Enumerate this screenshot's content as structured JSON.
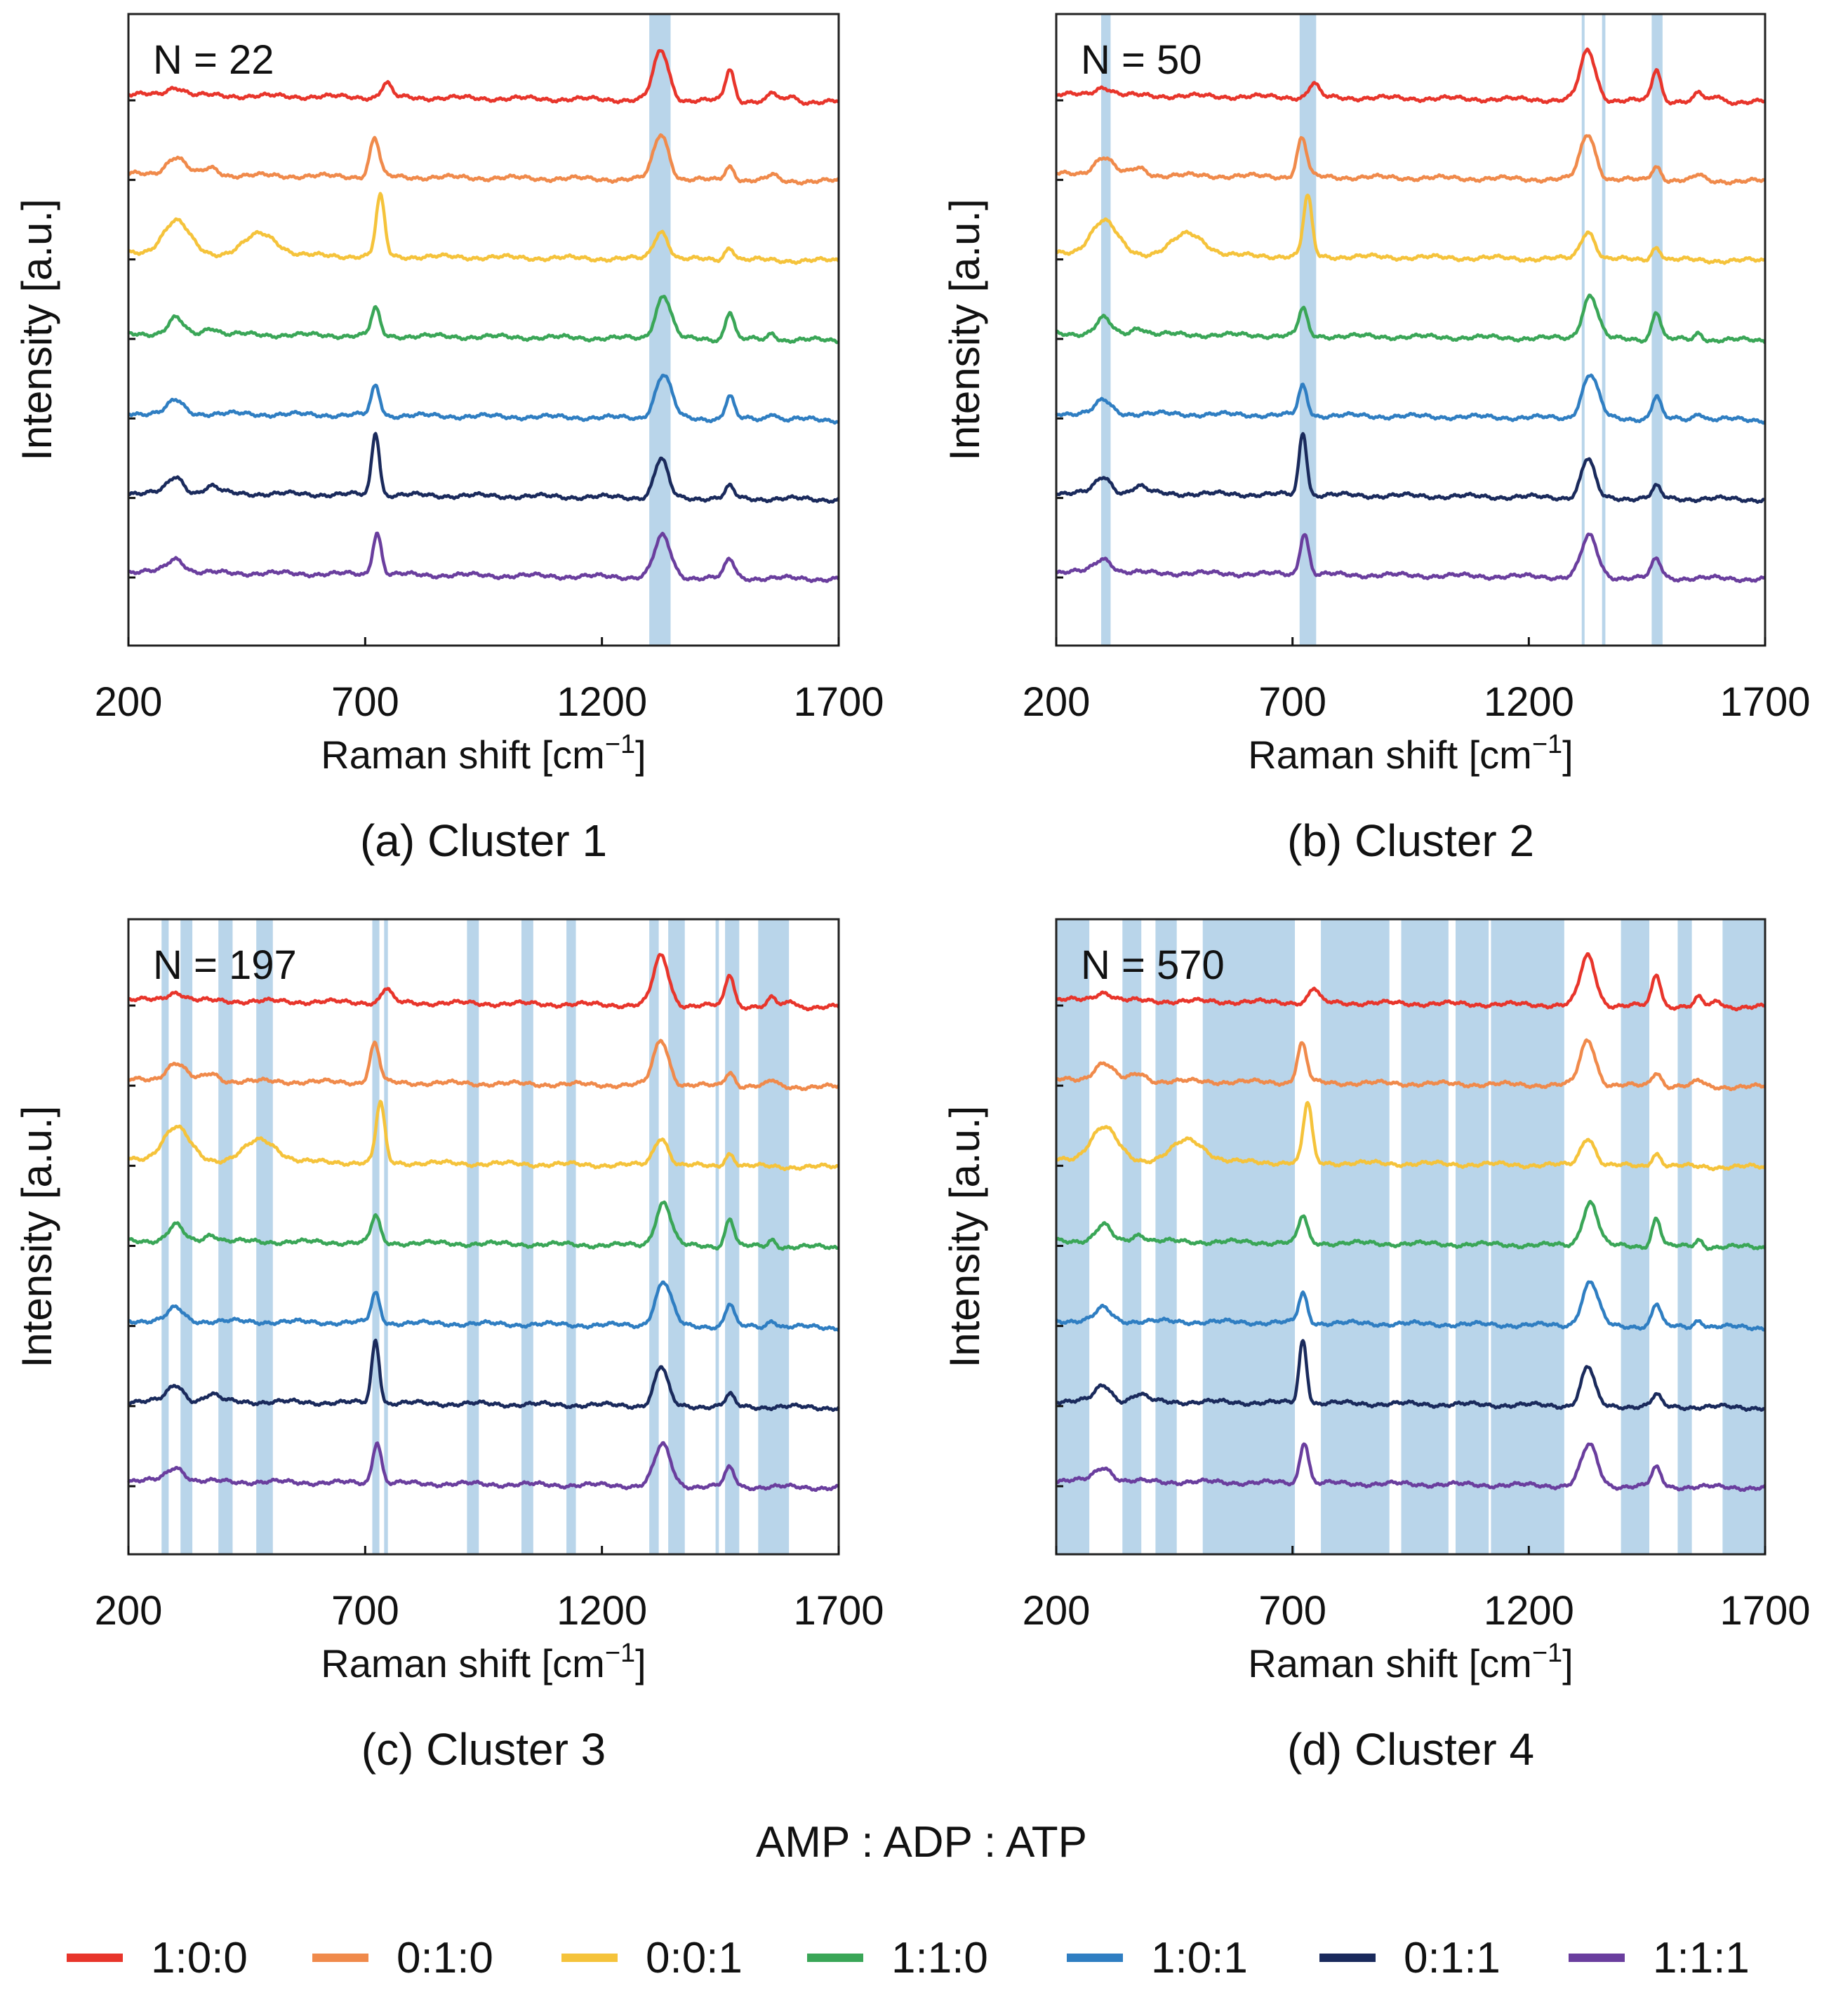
{
  "legend": {
    "title": "AMP : ADP : ATP",
    "items": [
      {
        "label": "1:0:0",
        "color": "#e8352b"
      },
      {
        "label": "0:1:0",
        "color": "#f08a4b"
      },
      {
        "label": "0:0:1",
        "color": "#f5c33b"
      },
      {
        "label": "1:1:0",
        "color": "#3aa657"
      },
      {
        "label": "1:0:1",
        "color": "#2f7ec2"
      },
      {
        "label": "0:1:1",
        "color": "#1a2a5c"
      },
      {
        "label": "1:1:1",
        "color": "#6a3e9e"
      }
    ]
  },
  "chart_data": [
    {
      "type": "line",
      "panel": "a",
      "caption": "(a) Cluster 1",
      "n_label": "N = 22",
      "xlabel": "Raman shift [cm",
      "xlabel_sup": "−1",
      "xlabel_end": "]",
      "ylabel": "Intensity [a.u.]",
      "xlim": [
        200,
        1700
      ],
      "xticks": [
        "200",
        "700",
        "1200",
        "1700"
      ],
      "highlight_bands": [
        [
          1300,
          1345
        ]
      ],
      "series_names": [
        "1:0:0",
        "0:1:0",
        "0:0:1",
        "1:1:0",
        "1:0:1",
        "0:1:1",
        "1:1:1"
      ]
    },
    {
      "type": "line",
      "panel": "b",
      "caption": "(b) Cluster 2",
      "n_label": "N = 50",
      "xlabel": "Raman shift [cm",
      "xlabel_sup": "−1",
      "xlabel_end": "]",
      "ylabel": "Intensity [a.u.]",
      "xlim": [
        200,
        1700
      ],
      "xticks": [
        "200",
        "700",
        "1200",
        "1700"
      ],
      "highlight_bands": [
        [
          295,
          315
        ],
        [
          715,
          750
        ],
        [
          1312,
          1318
        ],
        [
          1355,
          1362
        ],
        [
          1460,
          1483
        ]
      ],
      "series_names": [
        "1:0:0",
        "0:1:0",
        "0:0:1",
        "1:1:0",
        "1:0:1",
        "0:1:1",
        "1:1:1"
      ]
    },
    {
      "type": "line",
      "panel": "c",
      "caption": "(c) Cluster 3",
      "n_label": "N = 197",
      "xlabel": "Raman shift [cm",
      "xlabel_sup": "−1",
      "xlabel_end": "]",
      "ylabel": "Intensity [a.u.]",
      "xlim": [
        200,
        1700
      ],
      "xticks": [
        "200",
        "700",
        "1200",
        "1700"
      ],
      "highlight_bands": [
        [
          270,
          285
        ],
        [
          310,
          335
        ],
        [
          390,
          420
        ],
        [
          470,
          505
        ],
        [
          715,
          730
        ],
        [
          740,
          748
        ],
        [
          915,
          940
        ],
        [
          1030,
          1055
        ],
        [
          1125,
          1145
        ],
        [
          1300,
          1320
        ],
        [
          1340,
          1375
        ],
        [
          1440,
          1447
        ],
        [
          1460,
          1490
        ],
        [
          1530,
          1595
        ]
      ],
      "series_names": [
        "1:0:0",
        "0:1:0",
        "0:0:1",
        "1:1:0",
        "1:0:1",
        "0:1:1",
        "1:1:1"
      ]
    },
    {
      "type": "line",
      "panel": "d",
      "caption": "(d) Cluster 4",
      "n_label": "N = 570",
      "xlabel": "Raman shift [cm",
      "xlabel_sup": "−1",
      "xlabel_end": "]",
      "ylabel": "Intensity [a.u.]",
      "xlim": [
        200,
        1700
      ],
      "xticks": [
        "200",
        "700",
        "1200",
        "1700"
      ],
      "highlight_bands": [
        [
          200,
          270
        ],
        [
          340,
          380
        ],
        [
          410,
          455
        ],
        [
          510,
          705
        ],
        [
          760,
          905
        ],
        [
          930,
          1030
        ],
        [
          1045,
          1115
        ],
        [
          1120,
          1275
        ],
        [
          1395,
          1455
        ],
        [
          1515,
          1545
        ],
        [
          1610,
          1700
        ]
      ],
      "series_names": [
        "1:0:0",
        "0:1:0",
        "0:0:1",
        "1:1:0",
        "1:0:1",
        "0:1:1",
        "1:1:1"
      ]
    }
  ]
}
